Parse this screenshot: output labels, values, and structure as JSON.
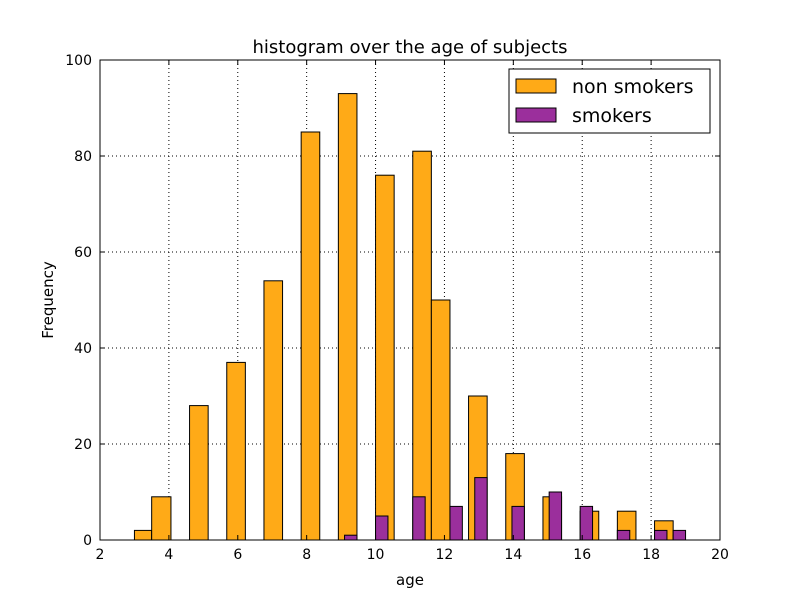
{
  "chart_data": {
    "type": "bar",
    "title": "histogram over the age of subjects",
    "xlabel": "age",
    "ylabel": "Frequency",
    "xlim": [
      2,
      20
    ],
    "ylim": [
      0,
      100
    ],
    "xticks": [
      2,
      4,
      6,
      8,
      10,
      12,
      14,
      16,
      18,
      20
    ],
    "yticks": [
      0,
      20,
      40,
      60,
      80,
      100
    ],
    "grid": true,
    "legend_position": "top-right",
    "series": [
      {
        "name": "non smokers",
        "color": "#ffaa17",
        "bins": [
          {
            "x0": 3.0,
            "x1": 3.5,
            "value": 2
          },
          {
            "x0": 3.5,
            "x1": 4.06,
            "value": 9
          },
          {
            "x0": 4.6,
            "x1": 5.14,
            "value": 28
          },
          {
            "x0": 5.68,
            "x1": 6.22,
            "value": 37
          },
          {
            "x0": 6.76,
            "x1": 7.3,
            "value": 54
          },
          {
            "x0": 7.84,
            "x1": 8.38,
            "value": 85
          },
          {
            "x0": 8.92,
            "x1": 9.46,
            "value": 93
          },
          {
            "x0": 10.0,
            "x1": 10.54,
            "value": 76
          },
          {
            "x0": 11.08,
            "x1": 11.62,
            "value": 81
          },
          {
            "x0": 11.62,
            "x1": 12.16,
            "value": 50
          },
          {
            "x0": 12.7,
            "x1": 13.24,
            "value": 30
          },
          {
            "x0": 13.78,
            "x1": 14.32,
            "value": 18
          },
          {
            "x0": 14.86,
            "x1": 15.4,
            "value": 9
          },
          {
            "x0": 15.94,
            "x1": 16.48,
            "value": 6
          },
          {
            "x0": 17.02,
            "x1": 17.56,
            "value": 6
          },
          {
            "x0": 18.1,
            "x1": 18.64,
            "value": 4
          },
          {
            "x0": 18.64,
            "x1": 18.82,
            "value": 1
          }
        ]
      },
      {
        "name": "smokers",
        "color": "#9b2f9c",
        "bins": [
          {
            "x0": 9.1,
            "x1": 9.46,
            "value": 1
          },
          {
            "x0": 10.0,
            "x1": 10.36,
            "value": 5
          },
          {
            "x0": 11.08,
            "x1": 11.44,
            "value": 9
          },
          {
            "x0": 12.16,
            "x1": 12.52,
            "value": 7
          },
          {
            "x0": 12.88,
            "x1": 13.24,
            "value": 13
          },
          {
            "x0": 13.96,
            "x1": 14.32,
            "value": 7
          },
          {
            "x0": 15.04,
            "x1": 15.4,
            "value": 10
          },
          {
            "x0": 15.94,
            "x1": 16.3,
            "value": 7
          },
          {
            "x0": 17.02,
            "x1": 17.38,
            "value": 2
          },
          {
            "x0": 18.1,
            "x1": 18.46,
            "value": 2
          },
          {
            "x0": 18.64,
            "x1": 19.0,
            "value": 2
          }
        ]
      }
    ]
  }
}
